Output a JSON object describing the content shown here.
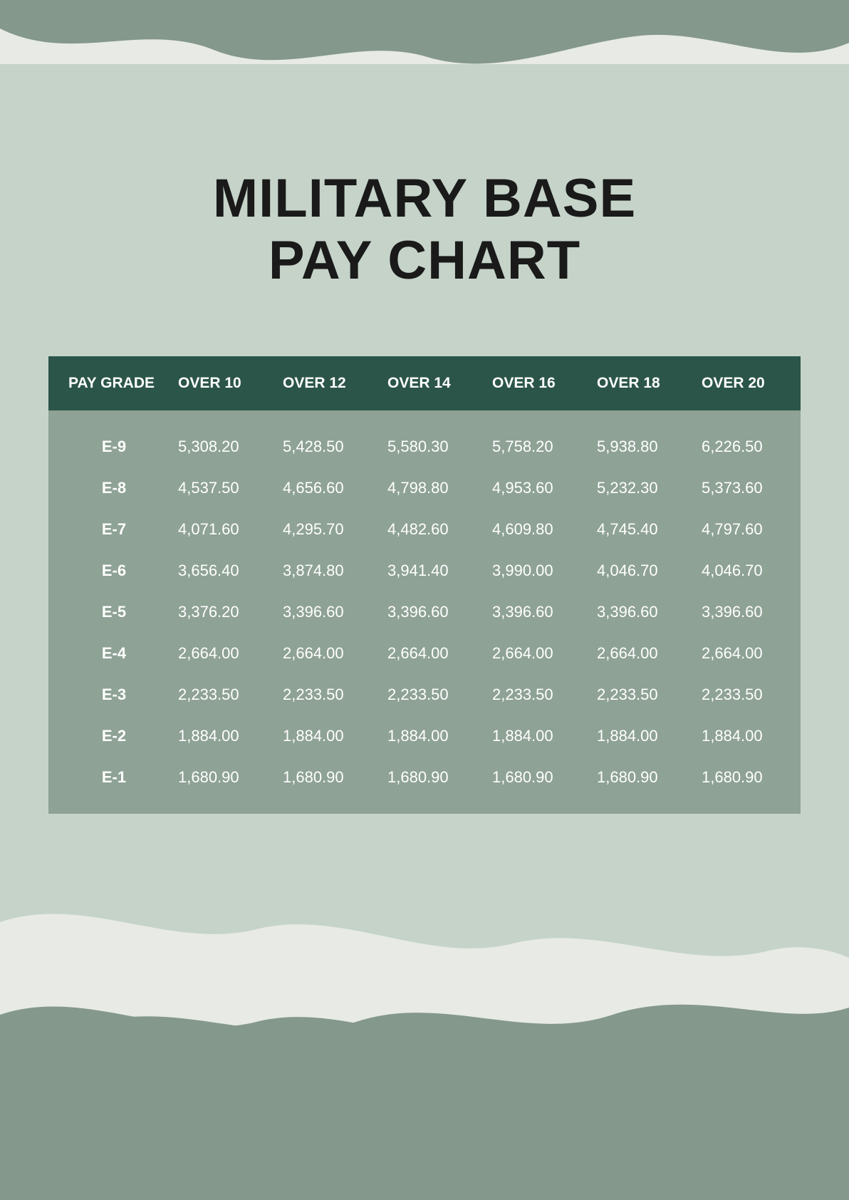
{
  "title_line1": "MILITARY BASE",
  "title_line2": "PAY CHART",
  "colors": {
    "page_bg": "#84988b",
    "light_panel": "#c5d3c9",
    "wave_light": "#e7eae5",
    "header_bg": "#2b5548",
    "body_bg": "#8ea295",
    "text_title": "#1a1a1a",
    "text_table": "#ffffff"
  },
  "typography": {
    "title_fontsize": 76,
    "title_weight": 900,
    "header_fontsize": 21,
    "cell_fontsize": 22
  },
  "table": {
    "type": "table",
    "columns": [
      "PAY GRADE",
      "OVER 10",
      "OVER 12",
      "OVER 14",
      "OVER 16",
      "OVER 18",
      "OVER 20"
    ],
    "rows": [
      {
        "grade": "E-9",
        "values": [
          "5,308.20",
          "5,428.50",
          "5,580.30",
          "5,758.20",
          "5,938.80",
          "6,226.50"
        ]
      },
      {
        "grade": "E-8",
        "values": [
          "4,537.50",
          "4,656.60",
          "4,798.80",
          "4,953.60",
          "5,232.30",
          "5,373.60"
        ]
      },
      {
        "grade": "E-7",
        "values": [
          "4,071.60",
          "4,295.70",
          "4,482.60",
          "4,609.80",
          "4,745.40",
          "4,797.60"
        ]
      },
      {
        "grade": "E-6",
        "values": [
          "3,656.40",
          "3,874.80",
          "3,941.40",
          "3,990.00",
          "4,046.70",
          "4,046.70"
        ]
      },
      {
        "grade": "E-5",
        "values": [
          "3,376.20",
          "3,396.60",
          "3,396.60",
          "3,396.60",
          "3,396.60",
          "3,396.60"
        ]
      },
      {
        "grade": "E-4",
        "values": [
          "2,664.00",
          "2,664.00",
          "2,664.00",
          "2,664.00",
          "2,664.00",
          "2,664.00"
        ]
      },
      {
        "grade": "E-3",
        "values": [
          "2,233.50",
          "2,233.50",
          "2,233.50",
          "2,233.50",
          "2,233.50",
          "2,233.50"
        ]
      },
      {
        "grade": "E-2",
        "values": [
          "1,884.00",
          "1,884.00",
          "1,884.00",
          "1,884.00",
          "1,884.00",
          "1,884.00"
        ]
      },
      {
        "grade": "E-1",
        "values": [
          "1,680.90",
          "1,680.90",
          "1,680.90",
          "1,680.90",
          "1,680.90",
          "1,680.90"
        ]
      }
    ]
  }
}
